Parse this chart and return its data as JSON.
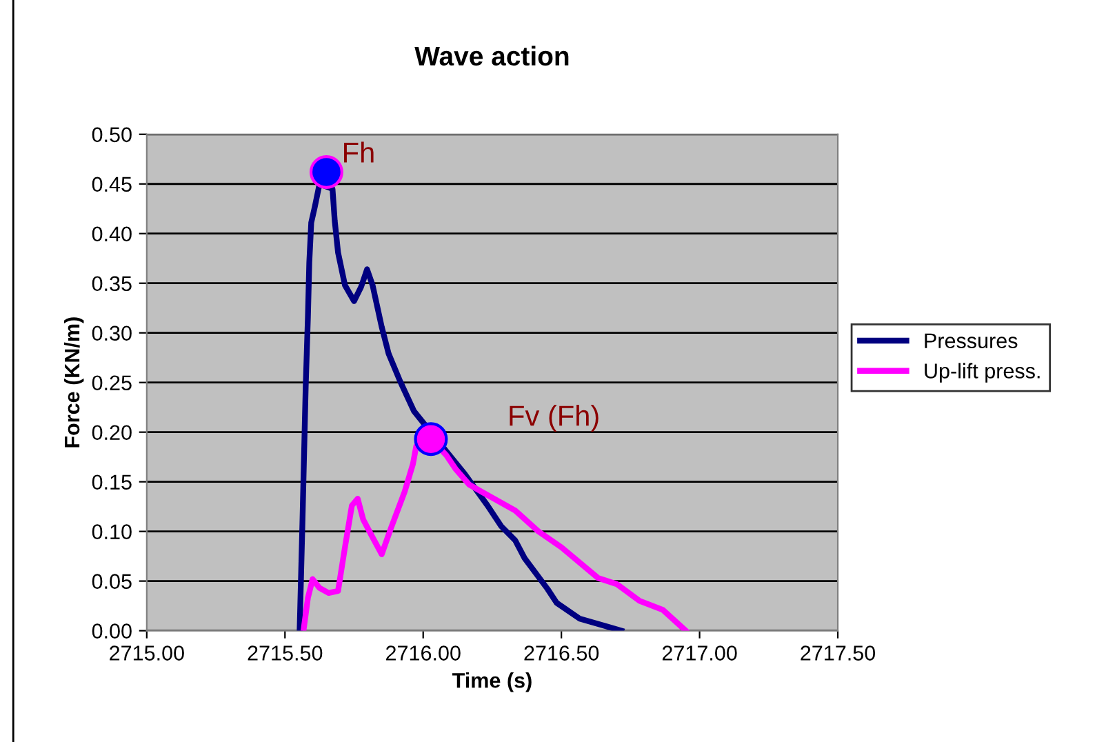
{
  "chart_data": {
    "type": "line",
    "title": "Wave action",
    "xlabel": "Time (s)",
    "ylabel": "Force (KN/m)",
    "xlim": [
      2715.0,
      2717.5
    ],
    "xticks": [
      {
        "value": 2715.0,
        "label": "2715.00"
      },
      {
        "value": 2715.5,
        "label": "2715.50"
      },
      {
        "value": 2716.0,
        "label": "2716.00"
      },
      {
        "value": 2716.5,
        "label": "2716.50"
      },
      {
        "value": 2717.0,
        "label": "2717.00"
      },
      {
        "value": 2717.5,
        "label": "2717.50"
      }
    ],
    "ylim": [
      0,
      0.5
    ],
    "yticks": [
      {
        "value": 0,
        "label": "0.00"
      },
      {
        "value": 0.05,
        "label": "0.05"
      },
      {
        "value": 0.1,
        "label": "0.10"
      },
      {
        "value": 0.15,
        "label": "0.15"
      },
      {
        "value": 0.2,
        "label": "0.20"
      },
      {
        "value": 0.25,
        "label": "0.25"
      },
      {
        "value": 0.3,
        "label": "0.30"
      },
      {
        "value": 0.35,
        "label": "0.35"
      },
      {
        "value": 0.4,
        "label": "0.40"
      },
      {
        "value": 0.45,
        "label": "0.45"
      },
      {
        "value": 0.5,
        "label": "0.50"
      }
    ],
    "grid": "y",
    "legend": "right",
    "marker": "none",
    "line_style": "solid",
    "series": [
      {
        "name": "Pressures",
        "color": "#000080",
        "x": [
          2715.553,
          2715.563,
          2715.575,
          2715.583,
          2715.588,
          2715.595,
          2715.608,
          2715.625,
          2715.672,
          2715.68,
          2715.692,
          2715.717,
          2715.75,
          2715.775,
          2715.797,
          2715.817,
          2715.85,
          2715.875,
          2715.917,
          2715.967,
          2716.083,
          2716.15,
          2716.233,
          2716.283,
          2716.333,
          2716.367,
          2716.45,
          2716.483,
          2716.567,
          2716.667,
          2716.717
        ],
        "values": [
          0,
          0.107,
          0.246,
          0.316,
          0.371,
          0.411,
          0.427,
          0.45,
          0.445,
          0.413,
          0.381,
          0.348,
          0.332,
          0.346,
          0.364,
          0.348,
          0.306,
          0.279,
          0.251,
          0.221,
          0.181,
          0.158,
          0.126,
          0.105,
          0.091,
          0.073,
          0.042,
          0.028,
          0.012,
          0.004,
          0
        ]
      },
      {
        "name": "Up-lift press.",
        "color": "#ff00ff",
        "x": [
          2715.567,
          2715.583,
          2715.6,
          2715.625,
          2715.658,
          2715.692,
          2715.717,
          2715.742,
          2715.763,
          2715.783,
          2715.817,
          2715.85,
          2715.883,
          2715.933,
          2715.963,
          2715.975,
          2716.028,
          2716.083,
          2716.117,
          2716.167,
          2716.217,
          2716.333,
          2716.417,
          2716.5,
          2716.633,
          2716.7,
          2716.783,
          2716.867,
          2716.95
        ],
        "values": [
          0,
          0.033,
          0.052,
          0.043,
          0.038,
          0.04,
          0.084,
          0.126,
          0.133,
          0.112,
          0.094,
          0.077,
          0.103,
          0.14,
          0.168,
          0.186,
          0.193,
          0.177,
          0.163,
          0.147,
          0.139,
          0.121,
          0.1,
          0.084,
          0.053,
          0.047,
          0.03,
          0.021,
          0
        ]
      },
      {
        "type": "scatter",
        "color": "#0000ff",
        "marker": "circle",
        "x": [
          2715.65
        ],
        "values": [
          0.462
        ]
      },
      {
        "type": "scatter",
        "color": "#ff00ff",
        "marker": "circle",
        "x": [
          2716.028
        ],
        "values": [
          0.193
        ]
      }
    ],
    "annotations": [
      {
        "text": "Fh",
        "x": 2715.65,
        "y": 0.462
      },
      {
        "text": "Fv (Fh)",
        "x": 2716.028,
        "y": 0.193
      }
    ]
  }
}
